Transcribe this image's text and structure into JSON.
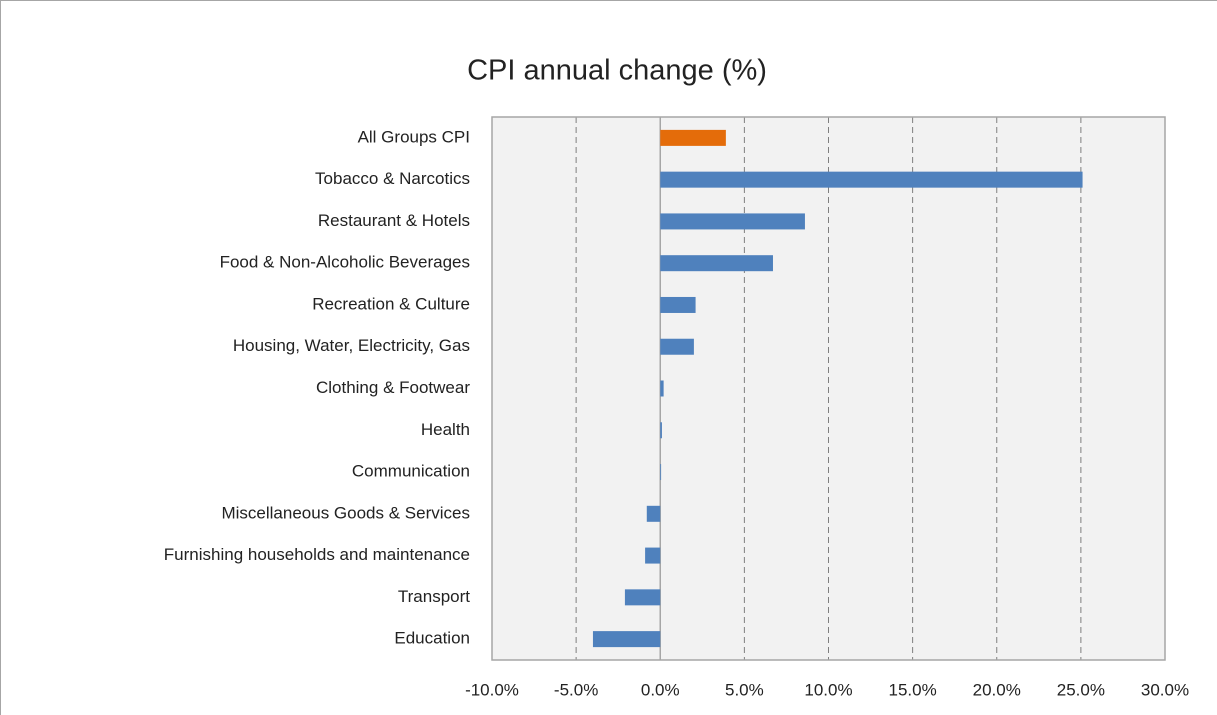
{
  "chart_data": {
    "type": "bar",
    "orientation": "horizontal",
    "title": "CPI annual change (%)",
    "categories": [
      "All Groups CPI",
      "Tobacco & Narcotics",
      "Restaurant & Hotels",
      "Food & Non-Alcoholic Beverages",
      "Recreation & Culture",
      "Housing, Water, Electricity, Gas",
      "Clothing & Footwear",
      "Health",
      "Communication",
      "Miscellaneous Goods & Services",
      "Furnishing households and maintenance",
      "Transport",
      "Education"
    ],
    "values": [
      3.9,
      25.1,
      8.6,
      6.7,
      2.1,
      2.0,
      0.2,
      0.1,
      0.05,
      -0.8,
      -0.9,
      -2.1,
      -4.0
    ],
    "colors": [
      "#e46c0a",
      "#4f81bd",
      "#4f81bd",
      "#4f81bd",
      "#4f81bd",
      "#4f81bd",
      "#4f81bd",
      "#4f81bd",
      "#4f81bd",
      "#4f81bd",
      "#4f81bd",
      "#4f81bd",
      "#4f81bd"
    ],
    "xlim": [
      -10,
      30
    ],
    "xticks": [
      {
        "value": -10,
        "label": "-10.0%"
      },
      {
        "value": -5,
        "label": "-5.0%"
      },
      {
        "value": 0,
        "label": "0.0%"
      },
      {
        "value": 5,
        "label": "5.0%"
      },
      {
        "value": 10,
        "label": "10.0%"
      },
      {
        "value": 15,
        "label": "15.0%"
      },
      {
        "value": 20,
        "label": "20.0%"
      },
      {
        "value": 25,
        "label": "25.0%"
      },
      {
        "value": 30,
        "label": "30.0%"
      }
    ],
    "grid": true
  }
}
